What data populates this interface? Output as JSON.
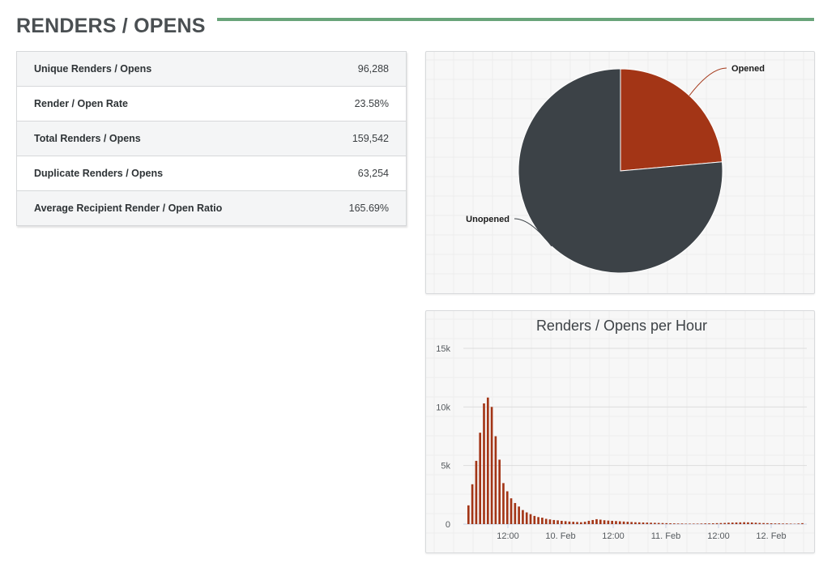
{
  "page": {
    "title": "RENDERS / OPENS"
  },
  "stats": [
    {
      "label": "Unique Renders / Opens",
      "value": "96,288"
    },
    {
      "label": "Render / Open Rate",
      "value": "23.58%"
    },
    {
      "label": "Total Renders / Opens",
      "value": "159,542"
    },
    {
      "label": "Duplicate Renders / Opens",
      "value": "63,254"
    },
    {
      "label": "Average Recipient Render / Open Ratio",
      "value": "165.69%"
    }
  ],
  "colors": {
    "accent_rule": "#69a47a",
    "opened": "#a33516",
    "unopened": "#3c4247",
    "bar": "#a33516"
  },
  "chart_data": [
    {
      "type": "pie",
      "title": "",
      "slices": [
        {
          "label": "Opened",
          "value": 23.58
        },
        {
          "label": "Unopened",
          "value": 76.42
        }
      ],
      "legend": "none",
      "grid": true
    },
    {
      "type": "bar",
      "title": "Renders / Opens per Hour",
      "xlabel": "",
      "ylabel": "",
      "ylim": [
        0,
        15000
      ],
      "y_ticks": [
        "0",
        "5k",
        "10k",
        "15k"
      ],
      "x_ticks": [
        "12:00",
        "10. Feb",
        "12:00",
        "11. Feb",
        "12:00",
        "12. Feb"
      ],
      "grid": true,
      "series": [
        {
          "values": [
            1600,
            3400,
            5400,
            7800,
            10300,
            10800,
            10000,
            7500,
            5500,
            3500,
            2800,
            2200,
            1800,
            1500,
            1200,
            1000,
            850,
            700,
            600,
            550,
            450,
            400,
            350,
            320,
            280,
            250,
            220,
            200,
            180,
            160,
            200,
            280,
            350,
            420,
            380,
            330,
            300,
            280,
            260,
            240,
            220,
            200,
            180,
            160,
            150,
            140,
            130,
            120,
            110,
            100,
            90,
            80,
            70,
            60,
            50,
            50,
            40,
            40,
            40,
            40,
            50,
            60,
            60,
            70,
            80,
            90,
            100,
            120,
            130,
            140,
            150,
            160,
            150,
            140,
            120,
            100,
            90,
            80,
            70,
            60,
            60,
            50,
            50,
            40,
            30,
            50,
            80
          ]
        }
      ]
    }
  ]
}
